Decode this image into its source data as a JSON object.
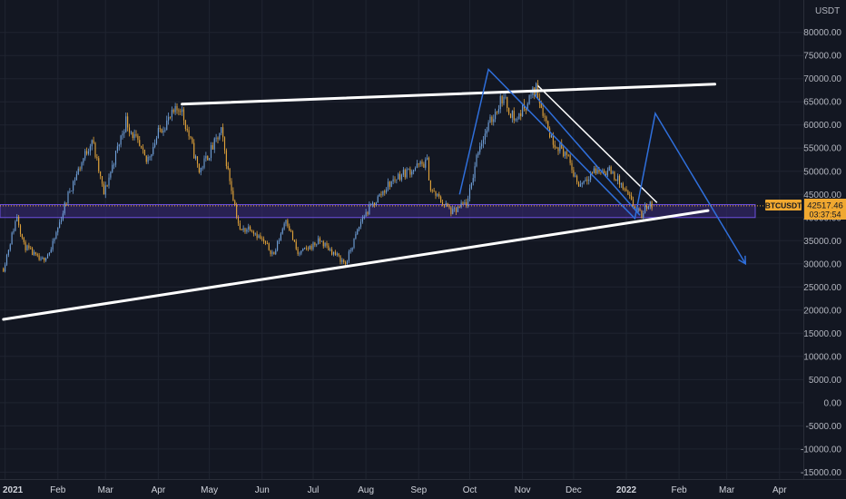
{
  "chart_data": {
    "type": "candlestick",
    "symbol": "BTCUSDT",
    "quote_currency": "USDT",
    "current_price": 42517.46,
    "price_label": "42517.46",
    "countdown": "03:37:54",
    "ylim": [
      -16500,
      87000
    ],
    "yticks": [
      "80000.00",
      "75000.00",
      "70000.00",
      "65000.00",
      "60000.00",
      "55000.00",
      "50000.00",
      "45000.00",
      "40000.00",
      "35000.00",
      "30000.00",
      "25000.00",
      "20000.00",
      "15000.00",
      "10000.00",
      "5000.00",
      "0.00",
      "-5000.00",
      "-10000.00",
      "-15000.00"
    ],
    "ytick_values": [
      80000,
      75000,
      70000,
      65000,
      60000,
      55000,
      50000,
      45000,
      40000,
      35000,
      30000,
      25000,
      20000,
      15000,
      10000,
      5000,
      0,
      -5000,
      -10000,
      -15000
    ],
    "xticks": [
      {
        "label": "2021",
        "date": "2021-01-01",
        "bold": true
      },
      {
        "label": "Feb",
        "date": "2021-02-01",
        "bold": false
      },
      {
        "label": "Mar",
        "date": "2021-03-01",
        "bold": false
      },
      {
        "label": "Apr",
        "date": "2021-04-01",
        "bold": false
      },
      {
        "label": "May",
        "date": "2021-05-01",
        "bold": false
      },
      {
        "label": "Jun",
        "date": "2021-06-01",
        "bold": false
      },
      {
        "label": "Jul",
        "date": "2021-07-01",
        "bold": false
      },
      {
        "label": "Aug",
        "date": "2021-08-01",
        "bold": false
      },
      {
        "label": "Sep",
        "date": "2021-09-01",
        "bold": false
      },
      {
        "label": "Oct",
        "date": "2021-10-01",
        "bold": false
      },
      {
        "label": "Nov",
        "date": "2021-11-01",
        "bold": false
      },
      {
        "label": "Dec",
        "date": "2021-12-01",
        "bold": false
      },
      {
        "label": "2022",
        "date": "2022-01-01",
        "bold": true
      },
      {
        "label": "Feb",
        "date": "2022-02-01",
        "bold": false
      },
      {
        "label": "Mar",
        "date": "2022-03-01",
        "bold": false
      },
      {
        "label": "Apr",
        "date": "2022-04-01",
        "bold": false
      }
    ],
    "price_anchors": [
      [
        "2020-12-31",
        29000
      ],
      [
        "2021-01-08",
        40500
      ],
      [
        "2021-01-12",
        34000
      ],
      [
        "2021-01-22",
        30500
      ],
      [
        "2021-01-28",
        33000
      ],
      [
        "2021-02-08",
        46000
      ],
      [
        "2021-02-21",
        57000
      ],
      [
        "2021-02-28",
        45000
      ],
      [
        "2021-03-13",
        61000
      ],
      [
        "2021-03-25",
        52000
      ],
      [
        "2021-04-02",
        59000
      ],
      [
        "2021-04-14",
        64000
      ],
      [
        "2021-04-25",
        50000
      ],
      [
        "2021-05-08",
        58500
      ],
      [
        "2021-05-12",
        50000
      ],
      [
        "2021-05-19",
        37000
      ],
      [
        "2021-05-25",
        38000
      ],
      [
        "2021-06-08",
        32000
      ],
      [
        "2021-06-15",
        40000
      ],
      [
        "2021-06-22",
        32000
      ],
      [
        "2021-07-05",
        35000
      ],
      [
        "2021-07-20",
        30000
      ],
      [
        "2021-07-30",
        40000
      ],
      [
        "2021-08-14",
        47000
      ],
      [
        "2021-08-20",
        49000
      ],
      [
        "2021-09-06",
        52000
      ],
      [
        "2021-09-08",
        46000
      ],
      [
        "2021-09-21",
        41000
      ],
      [
        "2021-09-30",
        43500
      ],
      [
        "2021-10-06",
        55000
      ],
      [
        "2021-10-20",
        66000
      ],
      [
        "2021-10-28",
        61000
      ],
      [
        "2021-11-09",
        68000
      ],
      [
        "2021-11-18",
        57000
      ],
      [
        "2021-11-26",
        54000
      ],
      [
        "2021-12-04",
        47000
      ],
      [
        "2021-12-12",
        50000
      ],
      [
        "2021-12-23",
        50000
      ],
      [
        "2021-12-28",
        47500
      ],
      [
        "2022-01-07",
        41500
      ],
      [
        "2022-01-10",
        40500
      ],
      [
        "2022-01-14",
        43000
      ],
      [
        "2022-01-16",
        42517
      ]
    ],
    "support_zone": [
      40000,
      42800
    ],
    "annotations": {
      "upper_white_line": [
        [
          "2021-04-15",
          64500
        ],
        [
          "2022-02-22",
          68800
        ]
      ],
      "lower_white_line": [
        [
          "2020-12-31",
          18000
        ],
        [
          "2022-02-18",
          41500
        ]
      ],
      "descending_white_line": [
        [
          "2021-11-10",
          68500
        ],
        [
          "2022-01-19",
          43200
        ]
      ],
      "blue_wave_left": [
        [
          "2021-09-25",
          45000
        ],
        [
          "2021-10-12",
          72000
        ],
        [
          "2022-01-06",
          39800
        ],
        [
          "2022-01-18",
          62500
        ],
        [
          "2022-03-12",
          30000
        ]
      ],
      "blue_channel_lower": [
        [
          "2021-11-08",
          66500
        ],
        [
          "2022-01-09",
          40500
        ]
      ]
    },
    "colors": {
      "background": "#131722",
      "up": "#6f9fd8",
      "down": "#e0a23a",
      "trendline": "#ffffff",
      "wave": "#2f6fdb",
      "zone_fill": "#3a2a7a",
      "zone_border": "#6c4fe0",
      "price_label_bg": "#f0a830",
      "grid": "#1f2430"
    }
  }
}
